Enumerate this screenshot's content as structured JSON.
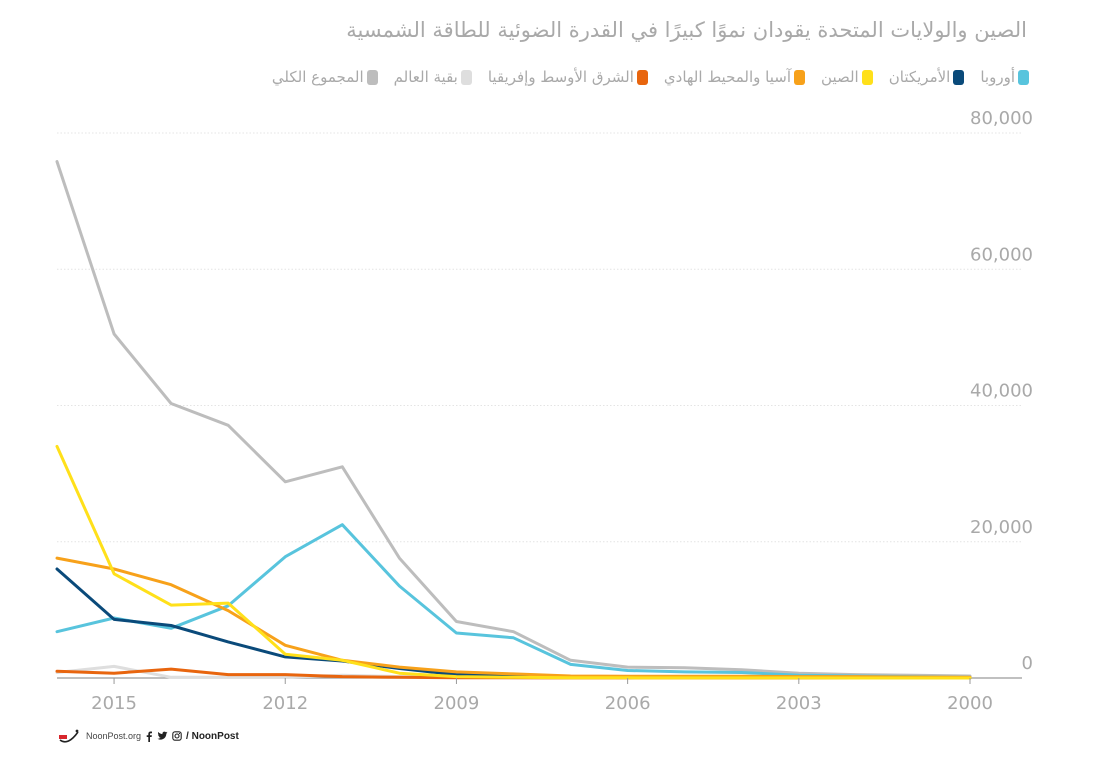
{
  "chart_data": {
    "type": "line",
    "title": "الصين والولايات المتحدة يقودان نموًا كبيرًا في القدرة الضوئية للطاقة الشمسية",
    "x": [
      2016,
      2015,
      2014,
      2013,
      2012,
      2011,
      2010,
      2009,
      2008,
      2007,
      2006,
      2005,
      2004,
      2003,
      2002,
      2001,
      2000
    ],
    "x_ticks": [
      2015,
      2012,
      2009,
      2006,
      2003,
      2000
    ],
    "y_ticks": [
      0,
      20000,
      40000,
      60000,
      80000
    ],
    "y_tick_labels": [
      "0",
      "20,000",
      "40,000",
      "60,000",
      "80,000"
    ],
    "xlim": [
      2016,
      2000
    ],
    "ylim": [
      0,
      80000
    ],
    "grid": true,
    "legend_position": "top",
    "series": [
      {
        "name": "أوروبا",
        "color": "#58c4dd",
        "values": [
          6800,
          8800,
          7300,
          10600,
          17800,
          22500,
          13500,
          6600,
          5900,
          2000,
          1100,
          900,
          800,
          400,
          300,
          200,
          100
        ]
      },
      {
        "name": "الأمريكتان",
        "color": "#0a4a7a",
        "values": [
          16000,
          8600,
          7700,
          5300,
          3100,
          2500,
          1400,
          500,
          300,
          200,
          150,
          120,
          100,
          80,
          60,
          40,
          30
        ]
      },
      {
        "name": "الصين",
        "color": "#ffe01a",
        "values": [
          34000,
          15300,
          10700,
          11000,
          3500,
          2600,
          700,
          200,
          100,
          50,
          30,
          20,
          15,
          10,
          5,
          5,
          5
        ]
      },
      {
        "name": "آسيا والمحيط الهادي",
        "color": "#f7a11a",
        "values": [
          17600,
          16000,
          13700,
          9900,
          4800,
          2600,
          1600,
          900,
          600,
          300,
          250,
          250,
          250,
          200,
          200,
          150,
          100
        ]
      },
      {
        "name": "الشرق الأوسط وإفريقيا",
        "color": "#e8650e",
        "values": [
          1000,
          700,
          1300,
          500,
          500,
          200,
          100,
          50,
          30,
          20,
          10,
          10,
          5,
          5,
          5,
          5,
          5
        ]
      },
      {
        "name": "بقية العالم",
        "color": "#dedede",
        "values": [
          800,
          1700,
          100,
          100,
          100,
          400,
          200,
          100,
          50,
          30,
          20,
          10,
          10,
          10,
          5,
          5,
          5
        ]
      },
      {
        "name": "المجموع الكلي",
        "color": "#bdbdbd",
        "values": [
          75800,
          50500,
          40300,
          37100,
          28800,
          31000,
          17600,
          8300,
          6800,
          2600,
          1600,
          1500,
          1200,
          700,
          500,
          400,
          300
        ]
      }
    ]
  },
  "footer": {
    "brand_text": "NoonPost.org",
    "social_text": "/ NoonPost",
    "social_icons": [
      "facebook-icon",
      "twitter-icon",
      "instagram-icon"
    ]
  }
}
